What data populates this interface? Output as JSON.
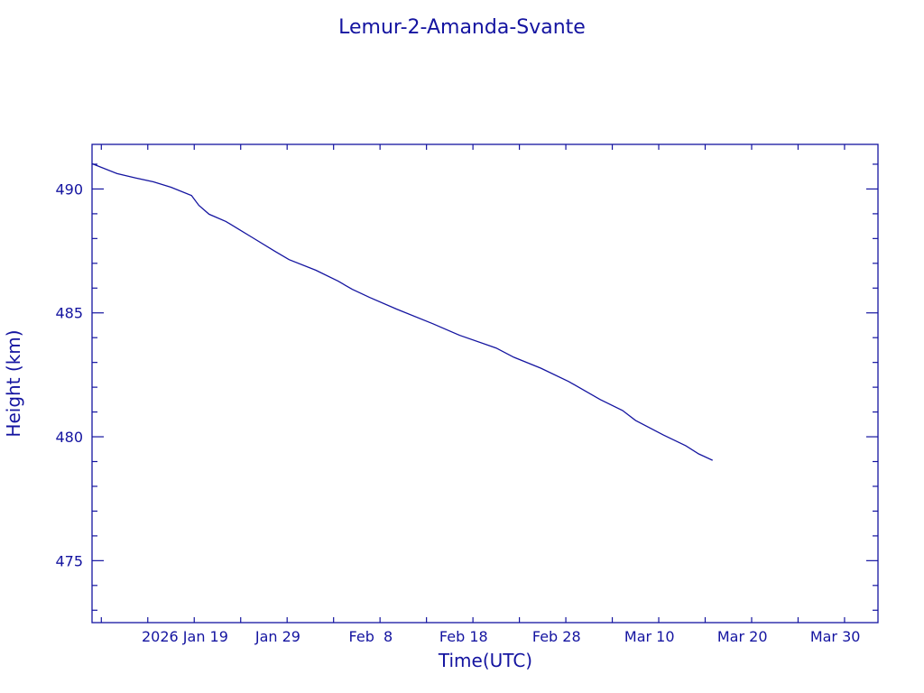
{
  "chart_data": {
    "type": "line",
    "title": "Lemur-2-Amanda-Svante",
    "xlabel": "Time(UTC)",
    "ylabel": "Height (km)",
    "x_units": "day of year 2026",
    "xlim": [
      9,
      93.6
    ],
    "ylim": [
      472.5,
      491.8
    ],
    "x_ticks": [
      {
        "value": 19,
        "label": "2026 Jan 19"
      },
      {
        "value": 29,
        "label": "Jan 29"
      },
      {
        "value": 39,
        "label": "Feb  8"
      },
      {
        "value": 49,
        "label": "Feb 18"
      },
      {
        "value": 59,
        "label": "Feb 28"
      },
      {
        "value": 69,
        "label": "Mar 10"
      },
      {
        "value": 79,
        "label": "Mar 20"
      },
      {
        "value": 89,
        "label": "Mar 30"
      }
    ],
    "x_minor_step": 5,
    "y_ticks": [
      {
        "value": 475,
        "label": "475"
      },
      {
        "value": 480,
        "label": "480"
      },
      {
        "value": 485,
        "label": "485"
      },
      {
        "value": 490,
        "label": "490"
      }
    ],
    "y_minor_step": 1,
    "grid": false,
    "series": [
      {
        "name": "Height",
        "color": "#1414a0",
        "x": [
          9,
          11.7,
          13.7,
          15.6,
          17.5,
          19.7,
          20.5,
          21.6,
          23.4,
          26.3,
          28.7,
          30.2,
          33.1,
          35.5,
          37.0,
          38.9,
          41.8,
          45.7,
          48.6,
          52.5,
          54.4,
          57.3,
          60.3,
          63.7,
          66.1,
          67.5,
          70.5,
          72.9,
          74.3,
          75.8
        ],
        "y": [
          491.02,
          490.62,
          490.44,
          490.29,
          490.07,
          489.74,
          489.34,
          488.98,
          488.69,
          488.03,
          487.48,
          487.15,
          486.72,
          486.28,
          485.95,
          485.62,
          485.15,
          484.56,
          484.09,
          483.58,
          483.21,
          482.77,
          482.23,
          481.5,
          481.06,
          480.66,
          480.07,
          479.64,
          479.31,
          479.05
        ]
      }
    ]
  }
}
